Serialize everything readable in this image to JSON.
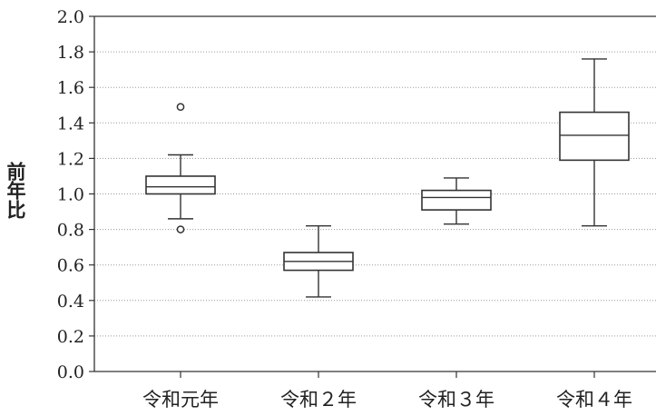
{
  "chart_data": {
    "type": "box",
    "ylabel": "前年比",
    "xlabel": "",
    "title": "",
    "ylim": [
      0.0,
      2.0
    ],
    "yticks": [
      "0.0",
      "0.2",
      "0.4",
      "0.6",
      "0.8",
      "1.0",
      "1.2",
      "1.4",
      "1.6",
      "1.8",
      "2.0"
    ],
    "grid": true,
    "categories": [
      "令和元年",
      "令和２年",
      "令和３年",
      "令和４年"
    ],
    "boxes": [
      {
        "min": 0.86,
        "q1": 1.0,
        "median": 1.04,
        "q3": 1.1,
        "max": 1.22,
        "outliers": [
          1.49,
          0.8
        ]
      },
      {
        "min": 0.42,
        "q1": 0.57,
        "median": 0.62,
        "q3": 0.67,
        "max": 0.82,
        "outliers": []
      },
      {
        "min": 0.83,
        "q1": 0.91,
        "median": 0.98,
        "q3": 1.02,
        "max": 1.09,
        "outliers": []
      },
      {
        "min": 0.82,
        "q1": 1.19,
        "median": 1.33,
        "q3": 1.46,
        "max": 1.76,
        "outliers": []
      }
    ]
  }
}
